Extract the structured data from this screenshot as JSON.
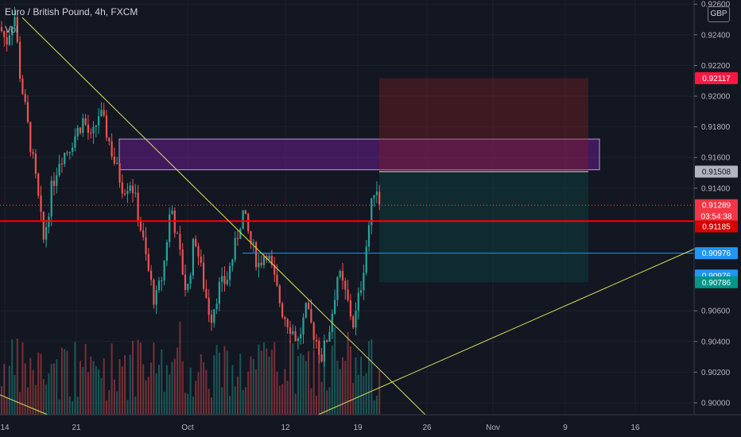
{
  "header": {
    "symbol_title": "Euro / British Pound, 4h, FXCM",
    "volume_label": "Vol",
    "currency": "GBP"
  },
  "chart_data": {
    "type": "candlestick",
    "interval": "4h",
    "y_ticks": [
      "0.92600",
      "0.92400",
      "0.92200",
      "0.92000",
      "0.91800",
      "0.91600",
      "0.91400",
      "0.90600",
      "0.90400",
      "0.90200",
      "0.90000"
    ],
    "x_ticks": [
      "14",
      "21",
      "Oct",
      "12",
      "19",
      "26",
      "Nov",
      "9",
      "16"
    ],
    "price_tags": [
      {
        "value": "0.92117",
        "bg": "#ff1744",
        "fg": "#ffffff",
        "price": 0.92117
      },
      {
        "value": "0.91508",
        "bg": "#b2b5be",
        "fg": "#131722",
        "price": 0.91508
      },
      {
        "value": "0.91289",
        "bg": "#f23645",
        "fg": "#ffffff",
        "price": 0.91289
      },
      {
        "value": "03:54:38",
        "bg": "#f23645",
        "fg": "#ffffff",
        "price": 0.91218
      },
      {
        "value": "0.91185",
        "bg": "#d50000",
        "fg": "#ffffff",
        "price": 0.9115
      },
      {
        "value": "0.90976",
        "bg": "#2196f3",
        "fg": "#ffffff",
        "price": 0.90976
      },
      {
        "value": "0.90976",
        "bg": "#2196f3",
        "fg": "#ffffff",
        "price": 0.9083
      },
      {
        "value": "0.90786",
        "bg": "#009688",
        "fg": "#ffffff",
        "price": 0.90786
      }
    ],
    "horizontal_levels": [
      {
        "price": 0.91185,
        "color": "#ff0000"
      },
      {
        "price": 0.90976,
        "color": "#2196f3"
      }
    ],
    "zones": [
      {
        "name": "resistance",
        "top": 0.9172,
        "bottom": 0.9152,
        "color": "#7b1fa2"
      },
      {
        "name": "stop",
        "top": 0.92117,
        "bottom": 0.91508,
        "color": "#8b2020"
      },
      {
        "name": "target",
        "top": 0.91508,
        "bottom": 0.90786,
        "color": "#0b5a4f"
      }
    ],
    "colors": {
      "up": "#26a69a",
      "down": "#ef5350",
      "trendline": "#d4e157",
      "bg": "#131722"
    }
  }
}
